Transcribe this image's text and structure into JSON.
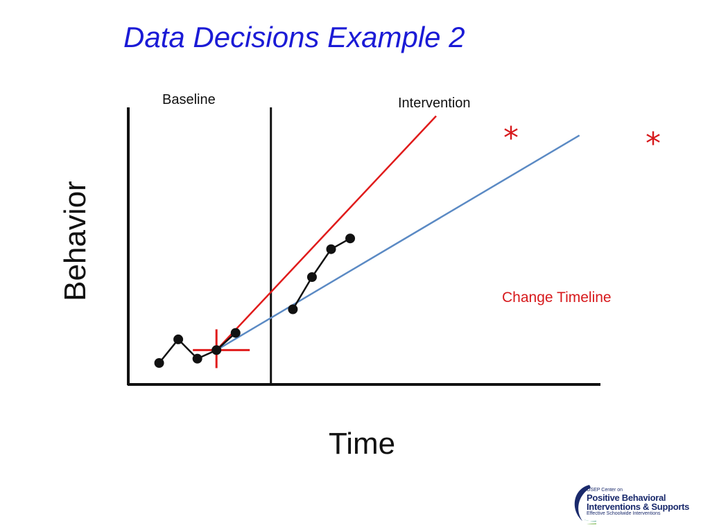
{
  "title": "Data Decisions Example 2",
  "chart_data": {
    "type": "line",
    "xlabel": "Time",
    "ylabel": "Behavior",
    "phases": [
      "Baseline",
      "Intervention"
    ],
    "phase_change_after_session": 6,
    "series": [
      {
        "phase": "Baseline",
        "x": [
          1,
          2,
          3,
          4,
          5
        ],
        "y": [
          1.0,
          2.1,
          1.2,
          1.6,
          2.4
        ]
      },
      {
        "phase": "Intervention",
        "x": [
          8,
          9,
          10,
          11
        ],
        "y": [
          3.5,
          5.0,
          6.3,
          6.8
        ]
      }
    ],
    "goal_marker": {
      "x": 4,
      "y": 1.6
    },
    "aim_lines": [
      {
        "color": "#e01b1b",
        "from": {
          "x": 4,
          "y": 1.6
        },
        "to": {
          "x": 15.5,
          "y": 12.5
        }
      },
      {
        "color": "#5b8ac4",
        "from": {
          "x": 4,
          "y": 1.6
        },
        "to": {
          "x": 23,
          "y": 11.6
        }
      }
    ],
    "annotation": "Change Timeline",
    "annotation_marks": [
      "*",
      "*"
    ]
  },
  "logo": {
    "line1": "OSEP Center on",
    "line2": "Positive Behavioral",
    "line3": "Interventions & Supports",
    "line4": "Effective Schoolwide Interventions"
  },
  "colors": {
    "title": "#1b1bd6",
    "red": "#e01b1b",
    "blue": "#5b8ac4",
    "axis": "#111111"
  }
}
